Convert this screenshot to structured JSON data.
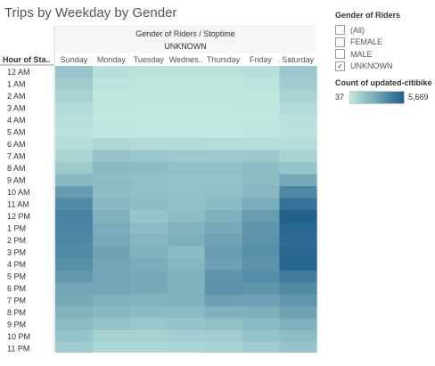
{
  "title": "Trips by Weekday by Gender",
  "header": {
    "group_title": "Gender of Riders  /  Stoptime",
    "group_value": "UNKNOWN",
    "row_header": "Hour of Sta.."
  },
  "legend": {
    "filter_title": "Gender of Riders",
    "items": [
      {
        "label": "(All)",
        "checked": false
      },
      {
        "label": "FEMALE",
        "checked": false
      },
      {
        "label": "MALE",
        "checked": false
      },
      {
        "label": "UNKNOWN",
        "checked": true
      }
    ],
    "checkmark": "✓",
    "color_title": "Count of updated-citibike..",
    "color_min": "37",
    "color_max": "5,669",
    "color_low": "#c1e8e0",
    "color_high": "#1f5f8b"
  },
  "chart_data": {
    "type": "heatmap",
    "x": [
      "Sunday",
      "Monday",
      "Tuesday",
      "Wednes..",
      "Thursday",
      "Friday",
      "Saturday"
    ],
    "y": [
      "12 AM",
      "1 AM",
      "2 AM",
      "3 AM",
      "4 AM",
      "5 AM",
      "6 AM",
      "7 AM",
      "8 AM",
      "9 AM",
      "10 AM",
      "11 AM",
      "12 PM",
      "1 PM",
      "2 PM",
      "3 PM",
      "4 PM",
      "5 PM",
      "6 PM",
      "7 PM",
      "8 PM",
      "9 PM",
      "10 PM",
      "11 PM"
    ],
    "value_range": [
      37,
      5669
    ],
    "values": [
      [
        1500,
        400,
        300,
        300,
        300,
        400,
        1400
      ],
      [
        1200,
        200,
        150,
        150,
        150,
        200,
        1200
      ],
      [
        900,
        120,
        100,
        100,
        100,
        150,
        900
      ],
      [
        600,
        80,
        60,
        60,
        60,
        100,
        600
      ],
      [
        400,
        60,
        40,
        40,
        40,
        60,
        400
      ],
      [
        300,
        80,
        60,
        60,
        60,
        80,
        300
      ],
      [
        500,
        700,
        600,
        600,
        500,
        500,
        500
      ],
      [
        800,
        1500,
        1400,
        1300,
        1300,
        1300,
        900
      ],
      [
        1300,
        1900,
        1800,
        1700,
        1700,
        1800,
        1500
      ],
      [
        2000,
        1800,
        1700,
        1600,
        1600,
        1800,
        2600
      ],
      [
        3200,
        1800,
        1700,
        1600,
        1700,
        2000,
        4000
      ],
      [
        3900,
        2000,
        1800,
        1700,
        1900,
        2500,
        4900
      ],
      [
        4200,
        2300,
        1500,
        1800,
        2300,
        3100,
        5600
      ],
      [
        4100,
        2500,
        1800,
        2200,
        2600,
        3400,
        5300
      ],
      [
        4000,
        2600,
        2100,
        2400,
        2900,
        3600,
        5200
      ],
      [
        3900,
        2900,
        2300,
        1900,
        3100,
        3700,
        5300
      ],
      [
        3700,
        2800,
        2500,
        2100,
        3000,
        3600,
        5400
      ],
      [
        3300,
        2800,
        2600,
        2300,
        3500,
        3800,
        4500
      ],
      [
        2800,
        2800,
        2600,
        2300,
        3600,
        3500,
        3900
      ],
      [
        2600,
        2300,
        2200,
        2300,
        3000,
        2900,
        3400
      ],
      [
        2200,
        2000,
        1900,
        1900,
        2300,
        2400,
        2900
      ],
      [
        1800,
        1500,
        1400,
        1500,
        1700,
        1900,
        2300
      ],
      [
        1500,
        1000,
        1000,
        1100,
        1200,
        1500,
        1800
      ],
      [
        1200,
        700,
        700,
        800,
        900,
        1200,
        1500
      ]
    ]
  }
}
